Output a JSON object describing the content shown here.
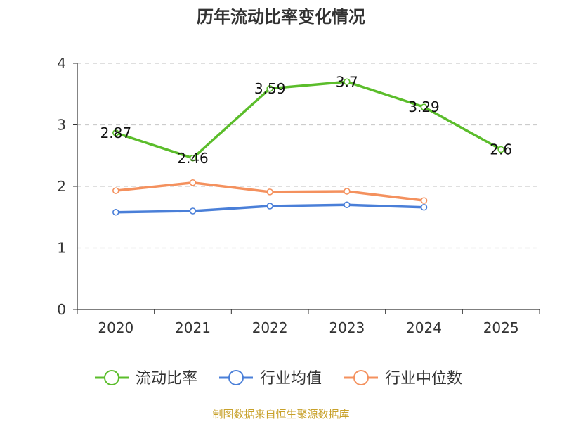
{
  "chart_data": {
    "type": "line",
    "title": "历年流动比率变化情况",
    "xlabel": "",
    "ylabel": "",
    "categories": [
      "2020",
      "2021",
      "2022",
      "2023",
      "2024",
      "2025"
    ],
    "ylim": [
      0,
      4
    ],
    "yticks": [
      0,
      1,
      2,
      3,
      4
    ],
    "grid": true,
    "legend_position": "bottom-center",
    "series": [
      {
        "name": "流动比率",
        "color": "#5bbd2b",
        "values": [
          2.87,
          2.46,
          3.59,
          3.7,
          3.29,
          2.6
        ],
        "labels": [
          "2.87",
          "2.46",
          "3.59",
          "3.7",
          "3.29",
          "2.6"
        ]
      },
      {
        "name": "行业均值",
        "color": "#4a7fd8",
        "values": [
          1.58,
          1.6,
          1.68,
          1.7,
          1.66,
          null
        ]
      },
      {
        "name": "行业中位数",
        "color": "#f4915e",
        "values": [
          1.93,
          2.06,
          1.91,
          1.92,
          1.77,
          null
        ]
      }
    ],
    "source": "制图数据来自恒生聚源数据库",
    "source_color": "#c8a12a"
  }
}
